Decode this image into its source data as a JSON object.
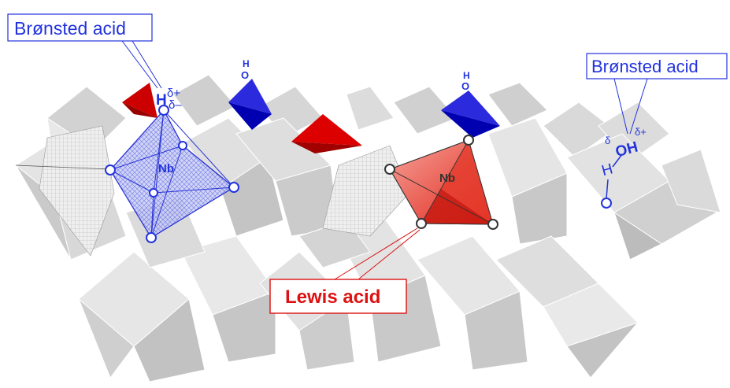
{
  "labels": {
    "bronsted_left": "Brønsted acid",
    "bronsted_right": "Brønsted acid",
    "lewis": "Lewis acid"
  },
  "atoms": {
    "nb": "Nb",
    "o": "O",
    "h": "H",
    "oh": "OH",
    "delta_plus": "δ+",
    "delta_minus": "δ–",
    "delta": "δ"
  },
  "colors": {
    "bronsted": "#2233dd",
    "lewis": "#dd1111",
    "polyhedra": "#e6e6e6"
  }
}
